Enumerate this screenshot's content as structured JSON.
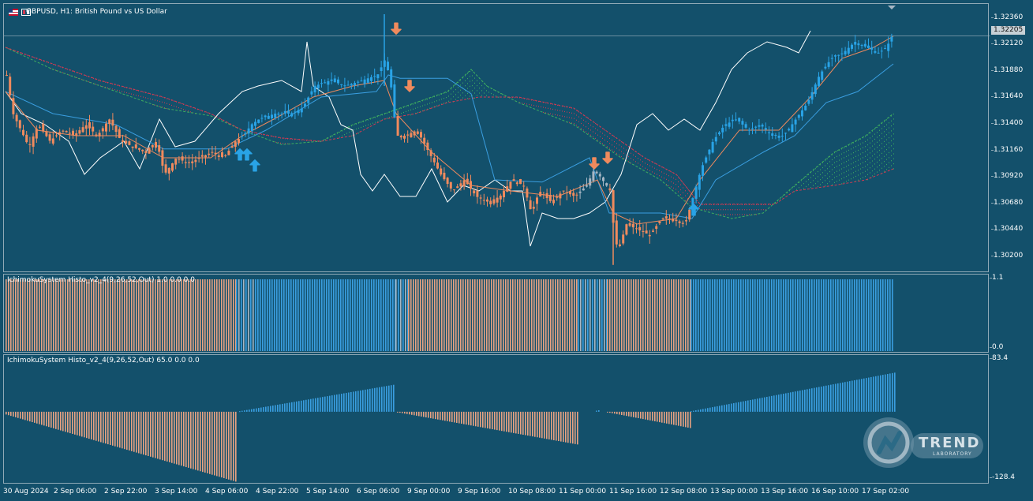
{
  "chart_header": {
    "title": "GBPUSD, H1:  British Pound vs US Dollar"
  },
  "current_price": "1.32205",
  "indicator1": {
    "label": "IchimokuSystem Histo_v2_4(9,26,52,Out) 1.0 0.0 0.0",
    "scale_top": "1.1",
    "scale_bottom": "0.0"
  },
  "indicator2": {
    "label": "IchimokuSystem Histo_v2_4(9,26,52,Out) 65.0 0.0 0.0",
    "scale_top": "83.4",
    "scale_bottom": "-128.4"
  },
  "logo": {
    "name": "TREND",
    "subtitle": "LABORATORY"
  },
  "colors": {
    "background": "#13506b",
    "bull": "#29a3e6",
    "bear": "#f08a5d",
    "bear_hist": "#e8a282",
    "bull_hist": "#3a9ee0",
    "neutral": "#a6b6c4",
    "chikou": "#ffffff",
    "kijun": "#3a9ee0",
    "tenkan": "#f08a5d",
    "span_a": "#3fae5f",
    "span_b": "#d03a52"
  },
  "chart_data": {
    "type": "candlestick",
    "symbol": "GBPUSD",
    "timeframe": "H1",
    "y_ticks": [
      "1.32360",
      "1.32120",
      "1.31880",
      "1.31640",
      "1.31400",
      "1.31160",
      "1.30920",
      "1.30680",
      "1.30440",
      "1.30200"
    ],
    "x_labels": [
      "30 Aug 2024",
      "2 Sep 06:00",
      "2 Sep 22:00",
      "3 Sep 14:00",
      "4 Sep 06:00",
      "4 Sep 22:00",
      "5 Sep 14:00",
      "6 Sep 06:00",
      "9 Sep 00:00",
      "9 Sep 16:00",
      "10 Sep 08:00",
      "11 Sep 00:00",
      "11 Sep 16:00",
      "12 Sep 08:00",
      "13 Sep 00:00",
      "13 Sep 16:00",
      "16 Sep 10:00",
      "17 Sep 02:00"
    ],
    "ylim": [
      1.301,
      1.3245
    ],
    "price_path": [
      [
        0,
        1.3185
      ],
      [
        8,
        1.315
      ],
      [
        18,
        1.3135
      ],
      [
        28,
        1.312
      ],
      [
        40,
        1.314
      ],
      [
        55,
        1.3125
      ],
      [
        70,
        1.3135
      ],
      [
        85,
        1.313
      ],
      [
        100,
        1.314
      ],
      [
        115,
        1.313
      ],
      [
        130,
        1.3145
      ],
      [
        145,
        1.3125
      ],
      [
        160,
        1.312
      ],
      [
        175,
        1.3115
      ],
      [
        190,
        1.3125
      ],
      [
        200,
        1.3095
      ],
      [
        215,
        1.311
      ],
      [
        230,
        1.3105
      ],
      [
        245,
        1.311
      ],
      [
        260,
        1.3115
      ],
      [
        275,
        1.311
      ],
      [
        290,
        1.3125
      ],
      [
        300,
        1.313
      ],
      [
        310,
        1.314
      ],
      [
        320,
        1.3145
      ],
      [
        340,
        1.315
      ],
      [
        360,
        1.315
      ],
      [
        375,
        1.3155
      ],
      [
        390,
        1.3175
      ],
      [
        410,
        1.318
      ],
      [
        430,
        1.3175
      ],
      [
        450,
        1.318
      ],
      [
        470,
        1.3185
      ],
      [
        480,
        1.32
      ],
      [
        487,
        1.3175
      ],
      [
        494,
        1.313
      ],
      [
        505,
        1.313
      ],
      [
        520,
        1.3135
      ],
      [
        535,
        1.3115
      ],
      [
        550,
        1.3095
      ],
      [
        565,
        1.308
      ],
      [
        580,
        1.309
      ],
      [
        595,
        1.3075
      ],
      [
        610,
        1.307
      ],
      [
        625,
        1.3075
      ],
      [
        640,
        1.309
      ],
      [
        655,
        1.3085
      ],
      [
        665,
        1.306
      ],
      [
        675,
        1.308
      ],
      [
        690,
        1.307
      ],
      [
        705,
        1.308
      ],
      [
        720,
        1.3075
      ],
      [
        735,
        1.3085
      ],
      [
        745,
        1.31
      ],
      [
        755,
        1.309
      ],
      [
        765,
        1.308
      ],
      [
        770,
        1.304
      ],
      [
        775,
        1.3025
      ],
      [
        785,
        1.305
      ],
      [
        800,
        1.3045
      ],
      [
        815,
        1.304
      ],
      [
        830,
        1.3055
      ],
      [
        845,
        1.3055
      ],
      [
        860,
        1.305
      ],
      [
        870,
        1.3075
      ],
      [
        880,
        1.31
      ],
      [
        895,
        1.3125
      ],
      [
        910,
        1.314
      ],
      [
        925,
        1.3145
      ],
      [
        940,
        1.3135
      ],
      [
        955,
        1.314
      ],
      [
        970,
        1.313
      ],
      [
        985,
        1.313
      ],
      [
        1000,
        1.3145
      ],
      [
        1015,
        1.316
      ],
      [
        1030,
        1.3185
      ],
      [
        1045,
        1.32
      ],
      [
        1060,
        1.3205
      ],
      [
        1075,
        1.3215
      ],
      [
        1090,
        1.321
      ],
      [
        1105,
        1.3205
      ],
      [
        1115,
        1.321
      ],
      [
        1125,
        1.3225
      ]
    ],
    "tenkan": [
      [
        0,
        1.317
      ],
      [
        40,
        1.3135
      ],
      [
        90,
        1.313
      ],
      [
        150,
        1.313
      ],
      [
        200,
        1.311
      ],
      [
        260,
        1.311
      ],
      [
        300,
        1.313
      ],
      [
        340,
        1.3145
      ],
      [
        390,
        1.3165
      ],
      [
        440,
        1.3175
      ],
      [
        480,
        1.318
      ],
      [
        495,
        1.315
      ],
      [
        540,
        1.3115
      ],
      [
        590,
        1.3085
      ],
      [
        640,
        1.308
      ],
      [
        700,
        1.3075
      ],
      [
        750,
        1.309
      ],
      [
        770,
        1.306
      ],
      [
        800,
        1.305
      ],
      [
        850,
        1.3055
      ],
      [
        880,
        1.309
      ],
      [
        930,
        1.3135
      ],
      [
        980,
        1.3135
      ],
      [
        1020,
        1.3165
      ],
      [
        1060,
        1.32
      ],
      [
        1100,
        1.321
      ],
      [
        1125,
        1.322
      ]
    ],
    "kijun": [
      [
        0,
        1.317
      ],
      [
        60,
        1.315
      ],
      [
        140,
        1.314
      ],
      [
        200,
        1.3118
      ],
      [
        280,
        1.3118
      ],
      [
        330,
        1.3135
      ],
      [
        400,
        1.3165
      ],
      [
        470,
        1.317
      ],
      [
        485,
        1.3185
      ],
      [
        500,
        1.3182
      ],
      [
        560,
        1.3182
      ],
      [
        590,
        1.3168
      ],
      [
        620,
        1.309
      ],
      [
        680,
        1.3088
      ],
      [
        740,
        1.311
      ],
      [
        765,
        1.306
      ],
      [
        830,
        1.306
      ],
      [
        870,
        1.3055
      ],
      [
        900,
        1.309
      ],
      [
        960,
        1.3115
      ],
      [
        1000,
        1.313
      ],
      [
        1040,
        1.316
      ],
      [
        1080,
        1.317
      ],
      [
        1125,
        1.3195
      ]
    ],
    "chikou": [
      [
        0,
        1.317
      ],
      [
        20,
        1.315
      ],
      [
        50,
        1.314
      ],
      [
        80,
        1.3125
      ],
      [
        100,
        1.3095
      ],
      [
        120,
        1.311
      ],
      [
        150,
        1.3125
      ],
      [
        170,
        1.31
      ],
      [
        195,
        1.3145
      ],
      [
        215,
        1.312
      ],
      [
        240,
        1.3125
      ],
      [
        270,
        1.315
      ],
      [
        300,
        1.317
      ],
      [
        320,
        1.3175
      ],
      [
        350,
        1.318
      ],
      [
        375,
        1.317
      ],
      [
        382,
        1.3215
      ],
      [
        390,
        1.3175
      ],
      [
        410,
        1.3165
      ],
      [
        425,
        1.314
      ],
      [
        440,
        1.3135
      ],
      [
        450,
        1.3095
      ],
      [
        465,
        1.308
      ],
      [
        480,
        1.3095
      ],
      [
        500,
        1.3075
      ],
      [
        520,
        1.3075
      ],
      [
        540,
        1.31
      ],
      [
        560,
        1.307
      ],
      [
        580,
        1.3085
      ],
      [
        600,
        1.308
      ],
      [
        620,
        1.309
      ],
      [
        640,
        1.308
      ],
      [
        655,
        1.308
      ],
      [
        665,
        1.303
      ],
      [
        680,
        1.306
      ],
      [
        700,
        1.3055
      ],
      [
        720,
        1.3055
      ],
      [
        740,
        1.306
      ],
      [
        760,
        1.307
      ],
      [
        780,
        1.3095
      ],
      [
        800,
        1.314
      ],
      [
        820,
        1.315
      ],
      [
        840,
        1.3135
      ],
      [
        860,
        1.3145
      ],
      [
        880,
        1.3135
      ],
      [
        900,
        1.316
      ],
      [
        920,
        1.319
      ],
      [
        940,
        1.3205
      ],
      [
        965,
        1.3215
      ],
      [
        990,
        1.321
      ],
      [
        1005,
        1.3205
      ],
      [
        1020,
        1.3225
      ]
    ],
    "span_a": [
      [
        0,
        1.321
      ],
      [
        60,
        1.319
      ],
      [
        120,
        1.3175
      ],
      [
        200,
        1.3155
      ],
      [
        260,
        1.3148
      ],
      [
        300,
        1.3135
      ],
      [
        350,
        1.3122
      ],
      [
        400,
        1.3125
      ],
      [
        440,
        1.314
      ],
      [
        480,
        1.315
      ],
      [
        520,
        1.316
      ],
      [
        560,
        1.317
      ],
      [
        590,
        1.319
      ],
      [
        610,
        1.3175
      ],
      [
        650,
        1.316
      ],
      [
        720,
        1.314
      ],
      [
        780,
        1.311
      ],
      [
        830,
        1.309
      ],
      [
        870,
        1.3065
      ],
      [
        920,
        1.3055
      ],
      [
        960,
        1.306
      ],
      [
        1000,
        1.3085
      ],
      [
        1050,
        1.3115
      ],
      [
        1090,
        1.313
      ],
      [
        1125,
        1.315
      ]
    ],
    "span_b": [
      [
        0,
        1.321
      ],
      [
        60,
        1.3195
      ],
      [
        120,
        1.318
      ],
      [
        200,
        1.3165
      ],
      [
        260,
        1.315
      ],
      [
        300,
        1.3135
      ],
      [
        350,
        1.3128
      ],
      [
        400,
        1.3125
      ],
      [
        440,
        1.313
      ],
      [
        480,
        1.3145
      ],
      [
        520,
        1.315
      ],
      [
        560,
        1.316
      ],
      [
        600,
        1.3165
      ],
      [
        650,
        1.3165
      ],
      [
        720,
        1.3155
      ],
      [
        770,
        1.313
      ],
      [
        810,
        1.311
      ],
      [
        850,
        1.3095
      ],
      [
        880,
        1.3068
      ],
      [
        920,
        1.3068
      ],
      [
        975,
        1.3068
      ],
      [
        1000,
        1.308
      ],
      [
        1050,
        1.3085
      ],
      [
        1090,
        1.309
      ],
      [
        1125,
        1.31
      ]
    ],
    "signals": [
      {
        "type": "buy",
        "x": 297,
        "y": 1.3118
      },
      {
        "type": "buy",
        "x": 306,
        "y": 1.3118
      },
      {
        "type": "buy",
        "x": 316,
        "y": 1.3108
      },
      {
        "type": "sell",
        "x": 495,
        "y": 1.3222
      },
      {
        "type": "sell",
        "x": 512,
        "y": 1.317
      },
      {
        "type": "sell",
        "x": 746,
        "y": 1.31
      },
      {
        "type": "sell",
        "x": 763,
        "y": 1.3105
      },
      {
        "type": "buy",
        "x": 872,
        "y": 1.3068
      }
    ],
    "histogram1": {
      "range": [
        0,
        1.1
      ],
      "segments": [
        {
          "from": 0,
          "to": 292,
          "color": "bear"
        },
        {
          "from": 292,
          "to": 316,
          "color": "mixed"
        },
        {
          "from": 316,
          "to": 494,
          "color": "bull"
        },
        {
          "from": 494,
          "to": 510,
          "color": "mixed"
        },
        {
          "from": 510,
          "to": 725,
          "color": "bear"
        },
        {
          "from": 725,
          "to": 762,
          "color": "mixed"
        },
        {
          "from": 762,
          "to": 868,
          "color": "bear"
        },
        {
          "from": 868,
          "to": 1125,
          "color": "bull"
        }
      ]
    },
    "histogram2": {
      "range": [
        -128.4,
        83.4
      ],
      "segments": [
        {
          "from": 0,
          "to": 292,
          "start": -5,
          "end": -128,
          "color": "bear"
        },
        {
          "from": 296,
          "to": 494,
          "start": 1,
          "end": 50,
          "color": "bull"
        },
        {
          "from": 496,
          "to": 725,
          "start": -1,
          "end": -60,
          "color": "bear"
        },
        {
          "from": 748,
          "to": 752,
          "start": 2,
          "end": 3,
          "color": "bull"
        },
        {
          "from": 762,
          "to": 868,
          "start": -1,
          "end": -30,
          "color": "bear"
        },
        {
          "from": 868,
          "to": 1128,
          "start": 1,
          "end": 72,
          "color": "bull"
        }
      ]
    }
  }
}
